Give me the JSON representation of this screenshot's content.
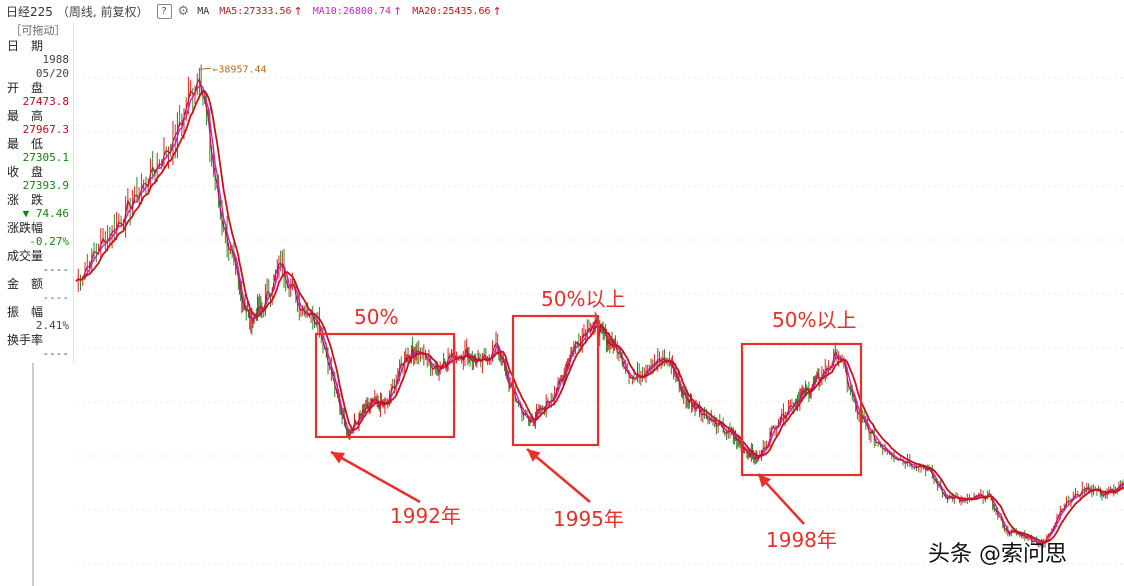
{
  "header": {
    "title": "日经225",
    "subtitle": "（周线, 前复权）",
    "help_label": "?",
    "ma_label": "MA",
    "ma5": "MA5:27333.56",
    "ma10": "MA10:26800.74",
    "ma20": "MA20:25435.66",
    "arrow": "↑",
    "colors": {
      "ma5": "#b0202a",
      "ma10": "#cc22cc",
      "ma20": "#cc1111"
    }
  },
  "info_panel": {
    "drag_label": "［可拖动］",
    "date_label": "日　期",
    "date_year": "1988",
    "date_md": "05/20",
    "open_label": "开　盘",
    "open_value": "27473.8",
    "high_label": "最　高",
    "high_value": "27967.3",
    "low_label": "最　低",
    "low_value": "27305.1",
    "close_label": "收　盘",
    "close_value": "27393.9",
    "change_label": "涨　跌",
    "change_value": "▼ 74.46",
    "pct_label": "涨跌幅",
    "pct_value": "-0.27%",
    "volume_label": "成交量",
    "volume_value": "----",
    "amount_label": "金　额",
    "amount_value": "----",
    "amplitude_label": "振　幅",
    "amplitude_value": "2.41%",
    "turnover_label": "换手率",
    "turnover_value": "----"
  },
  "peak_label": "38957.44",
  "annotations": {
    "box1_pct": "50%",
    "box2_pct": "50%以上",
    "box3_pct": "50%以上",
    "year1": "1992年",
    "year2": "1995年",
    "year3": "1998年",
    "color": "#e8302a"
  },
  "watermark": "头条 @索问思",
  "chart_data": {
    "type": "line",
    "title": "日经225",
    "ylim": [
      5000,
      42000
    ],
    "x": [
      1988.0,
      1988.4,
      1988.8,
      1989.2,
      1989.6,
      1989.99,
      1990.3,
      1990.6,
      1990.8,
      1991.0,
      1991.3,
      1991.6,
      1991.9,
      1992.2,
      1992.4,
      1992.6,
      1992.8,
      1993.0,
      1993.3,
      1993.5,
      1993.8,
      1994.0,
      1994.3,
      1994.5,
      1994.8,
      1995.0,
      1995.3,
      1995.5,
      1995.8,
      1996.0,
      1996.3,
      1996.5,
      1996.7,
      1997.0,
      1997.3,
      1997.6,
      1997.8,
      1998.0,
      1998.3,
      1998.6,
      1998.8,
      1999.0,
      1999.3,
      1999.6,
      1999.8,
      2000.0,
      2000.3,
      2000.6,
      2000.9,
      2001.3,
      2001.7,
      2002.0,
      2002.3,
      2002.7,
      2003.0,
      2003.3,
      2003.6,
      2003.9,
      2004.3,
      2004.6,
      2004.9
    ],
    "series": [
      {
        "name": "close",
        "values": [
          25000,
          27400,
          29500,
          32000,
          34500,
          38900,
          30000,
          25000,
          22500,
          23200,
          26200,
          23500,
          22500,
          17500,
          15000,
          16200,
          17000,
          16800,
          20000,
          20500,
          19200,
          20000,
          20300,
          19500,
          20800,
          18000,
          15700,
          16500,
          18200,
          20500,
          22300,
          21500,
          20600,
          18500,
          19800,
          19600,
          17500,
          16800,
          15600,
          14800,
          14000,
          13300,
          15800,
          17200,
          17800,
          18700,
          20300,
          16300,
          14500,
          13300,
          12800,
          11000,
          10500,
          11000,
          8600,
          8300,
          7700,
          10200,
          11500,
          11000,
          11600
        ]
      }
    ]
  }
}
